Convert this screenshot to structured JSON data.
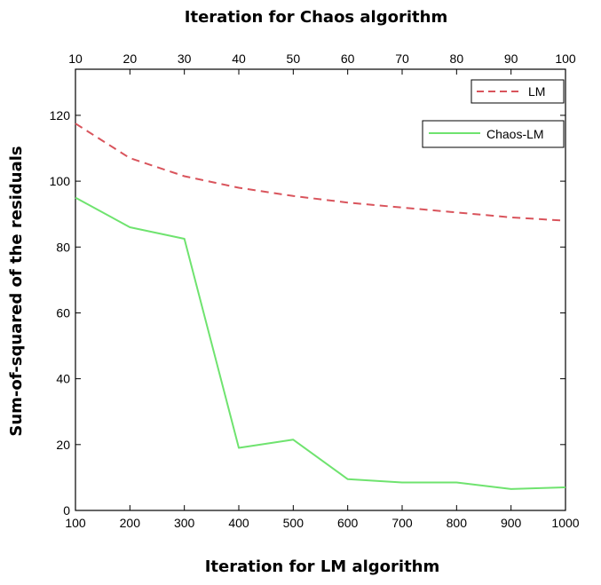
{
  "chart_data": {
    "type": "line",
    "top_axis": {
      "label": "Iteration for Chaos algorithm",
      "ticks": [
        10,
        20,
        30,
        40,
        50,
        60,
        70,
        80,
        90,
        100
      ],
      "range": [
        10,
        100
      ]
    },
    "bottom_axis": {
      "label": "Iteration for LM algorithm",
      "ticks": [
        100,
        200,
        300,
        400,
        500,
        600,
        700,
        800,
        900,
        1000
      ],
      "range": [
        100,
        1000
      ]
    },
    "y_axis": {
      "label": "Sum-of-squared of the residuals",
      "ticks": [
        0,
        20,
        40,
        60,
        80,
        100,
        120
      ],
      "range": [
        0,
        134
      ]
    },
    "grid": false,
    "legend_placement": "top-right",
    "series": [
      {
        "name": "LM",
        "color": "#d9545c",
        "style": "dashed",
        "x": [
          100,
          200,
          300,
          400,
          500,
          600,
          700,
          800,
          900,
          1000
        ],
        "values": [
          117.5,
          107,
          101.5,
          98,
          95.5,
          93.5,
          92,
          90.5,
          89,
          88
        ]
      },
      {
        "name": "Chaos-LM",
        "color": "#6fe36f",
        "style": "solid",
        "x": [
          100,
          200,
          300,
          400,
          500,
          600,
          700,
          800,
          900,
          1000
        ],
        "values": [
          95,
          86,
          82.5,
          19,
          21.5,
          9.5,
          8.5,
          8.5,
          6.5,
          7
        ]
      }
    ]
  }
}
